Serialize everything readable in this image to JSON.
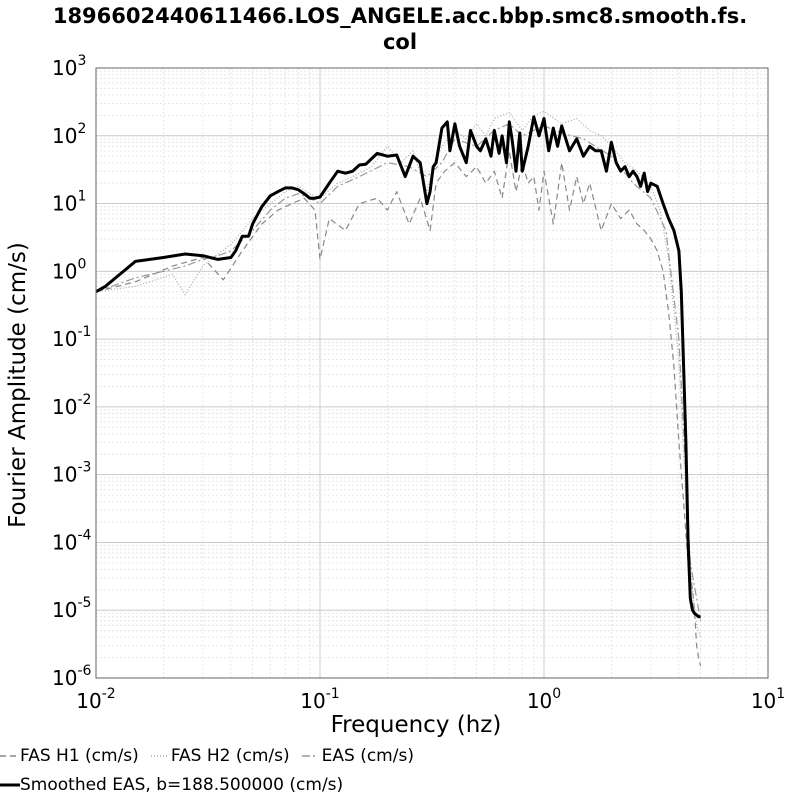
{
  "chart_data": {
    "type": "line",
    "title_line1": "1896602440611466.LOS_ANGELE.acc.bbp.smc8.smooth.fs.",
    "title_line2": "col",
    "xlabel": "Frequency (hz)",
    "ylabel": "Fourier Amplitude (cm/s)",
    "xscale": "log",
    "yscale": "log",
    "xlim": [
      0.01,
      10
    ],
    "ylim": [
      1e-06,
      1000
    ],
    "x_ticks": [
      {
        "base": "10",
        "exp": "-2"
      },
      {
        "base": "10",
        "exp": "-1"
      },
      {
        "base": "10",
        "exp": "0"
      },
      {
        "base": "10",
        "exp": "1"
      }
    ],
    "y_ticks": [
      {
        "base": "10",
        "exp": "-6"
      },
      {
        "base": "10",
        "exp": "-5"
      },
      {
        "base": "10",
        "exp": "-4"
      },
      {
        "base": "10",
        "exp": "-3"
      },
      {
        "base": "10",
        "exp": "-2"
      },
      {
        "base": "10",
        "exp": "-1"
      },
      {
        "base": "10",
        "exp": "0"
      },
      {
        "base": "10",
        "exp": "1"
      },
      {
        "base": "10",
        "exp": "2"
      },
      {
        "base": "10",
        "exp": "3"
      }
    ],
    "grid": true,
    "legend_position": "bottom",
    "series": [
      {
        "name": "FAS H1 (cm/s)",
        "color": "#888888",
        "dash": "6,4",
        "x": [
          0.01,
          0.015,
          0.022,
          0.03,
          0.037,
          0.045,
          0.055,
          0.065,
          0.075,
          0.085,
          0.095,
          0.1,
          0.11,
          0.13,
          0.15,
          0.18,
          0.2,
          0.22,
          0.25,
          0.28,
          0.31,
          0.33,
          0.36,
          0.4,
          0.45,
          0.5,
          0.55,
          0.6,
          0.65,
          0.7,
          0.75,
          0.8,
          0.85,
          0.9,
          0.95,
          1.0,
          1.1,
          1.2,
          1.3,
          1.4,
          1.5,
          1.6,
          1.8,
          2.0,
          2.2,
          2.4,
          2.6,
          2.8,
          3.0,
          3.2,
          3.4,
          3.6,
          3.8,
          4.0,
          4.2,
          4.4,
          4.6,
          4.7,
          4.8,
          4.9,
          5.0
        ],
        "y": [
          0.5,
          0.7,
          1.2,
          1.6,
          0.75,
          2.0,
          5.0,
          8.0,
          10,
          12,
          8,
          1.5,
          6,
          4,
          10,
          12,
          8,
          15,
          5,
          12,
          4,
          20,
          30,
          40,
          25,
          35,
          20,
          30,
          12,
          60,
          15,
          40,
          20,
          25,
          8,
          30,
          5,
          40,
          8,
          25,
          10,
          20,
          4,
          10,
          6,
          8,
          5,
          4,
          3,
          2,
          1.0,
          0.25,
          0.04,
          0.003,
          0.0004,
          5e-05,
          2e-05,
          1e-05,
          3e-06,
          2e-06,
          1.5e-06
        ]
      },
      {
        "name": "FAS H2 (cm/s)",
        "color": "#aaaaaa",
        "dash": "1,2",
        "x": [
          0.01,
          0.015,
          0.022,
          0.025,
          0.03,
          0.035,
          0.04,
          0.05,
          0.06,
          0.07,
          0.08,
          0.09,
          0.1,
          0.12,
          0.14,
          0.17,
          0.2,
          0.23,
          0.26,
          0.3,
          0.33,
          0.36,
          0.4,
          0.45,
          0.5,
          0.55,
          0.6,
          0.7,
          0.8,
          0.9,
          1.0,
          1.2,
          1.4,
          1.6,
          1.8,
          2.0,
          2.3,
          2.6,
          3.0,
          3.3,
          3.6,
          4.0,
          4.3,
          4.6,
          4.8,
          5.0
        ],
        "y": [
          0.5,
          0.6,
          0.9,
          0.45,
          1.2,
          1.8,
          2.5,
          6,
          10,
          15,
          18,
          14,
          12,
          20,
          25,
          35,
          70,
          40,
          60,
          15,
          50,
          80,
          120,
          90,
          150,
          100,
          180,
          220,
          120,
          200,
          230,
          150,
          180,
          120,
          100,
          70,
          40,
          30,
          18,
          8,
          1.5,
          0.05,
          0.0004,
          2e-05,
          6e-06,
          4e-06
        ]
      },
      {
        "name": "EAS (cm/s)",
        "color": "#999999",
        "dash": "8,3,2,3",
        "x": [
          0.01,
          0.015,
          0.02,
          0.025,
          0.03,
          0.035,
          0.04,
          0.05,
          0.06,
          0.07,
          0.08,
          0.09,
          0.1,
          0.12,
          0.15,
          0.2,
          0.25,
          0.3,
          0.35,
          0.4,
          0.5,
          0.6,
          0.7,
          0.8,
          0.9,
          1.0,
          1.2,
          1.5,
          2.0,
          2.5,
          3.0,
          3.5,
          4.0,
          4.5,
          5.0
        ],
        "y": [
          0.5,
          0.8,
          1.0,
          1.2,
          1.5,
          1.7,
          2.0,
          4.0,
          8.0,
          12,
          14,
          12,
          10,
          18,
          25,
          40,
          35,
          25,
          40,
          90,
          70,
          120,
          150,
          100,
          120,
          140,
          110,
          90,
          50,
          20,
          12,
          4.0,
          0.1,
          5e-05,
          7e-06
        ]
      },
      {
        "name": "Smoothed EAS, b=188.500000 (cm/s)",
        "color": "#000000",
        "dash": "",
        "x": [
          0.01,
          0.011,
          0.015,
          0.02,
          0.025,
          0.03,
          0.035,
          0.04,
          0.042,
          0.045,
          0.048,
          0.05,
          0.055,
          0.06,
          0.065,
          0.07,
          0.075,
          0.08,
          0.085,
          0.09,
          0.095,
          0.1,
          0.11,
          0.12,
          0.13,
          0.14,
          0.15,
          0.16,
          0.18,
          0.2,
          0.22,
          0.24,
          0.26,
          0.28,
          0.3,
          0.31,
          0.32,
          0.33,
          0.35,
          0.37,
          0.38,
          0.4,
          0.42,
          0.45,
          0.47,
          0.5,
          0.52,
          0.55,
          0.58,
          0.6,
          0.63,
          0.65,
          0.68,
          0.7,
          0.72,
          0.75,
          0.78,
          0.8,
          0.85,
          0.9,
          0.95,
          1.0,
          1.05,
          1.1,
          1.15,
          1.2,
          1.3,
          1.4,
          1.5,
          1.6,
          1.7,
          1.8,
          1.9,
          2.0,
          2.1,
          2.2,
          2.3,
          2.4,
          2.5,
          2.6,
          2.7,
          2.8,
          2.9,
          3.0,
          3.2,
          3.4,
          3.6,
          3.8,
          4.0,
          4.1,
          4.2,
          4.3,
          4.4,
          4.5,
          4.6,
          4.7,
          4.8,
          4.9,
          5.0
        ],
        "y": [
          0.5,
          0.6,
          1.4,
          1.6,
          1.8,
          1.7,
          1.5,
          1.6,
          2.0,
          3.3,
          3.3,
          5,
          9,
          13,
          15,
          17,
          17,
          16,
          14,
          12,
          12,
          12.5,
          20,
          30,
          28,
          30,
          37,
          38,
          55,
          50,
          52,
          25,
          50,
          40,
          10,
          15,
          35,
          40,
          130,
          160,
          60,
          150,
          70,
          40,
          120,
          70,
          60,
          90,
          50,
          120,
          55,
          100,
          40,
          160,
          90,
          30,
          110,
          30,
          70,
          190,
          100,
          180,
          60,
          130,
          70,
          140,
          60,
          90,
          50,
          70,
          60,
          60,
          30,
          80,
          40,
          30,
          35,
          25,
          30,
          25,
          18,
          28,
          15,
          20,
          18,
          10,
          6,
          4,
          2.0,
          0.5,
          0.04,
          0.003,
          0.0001,
          1.5e-05,
          1e-05,
          9e-06,
          8.5e-06,
          8e-06,
          8e-06
        ]
      }
    ]
  }
}
